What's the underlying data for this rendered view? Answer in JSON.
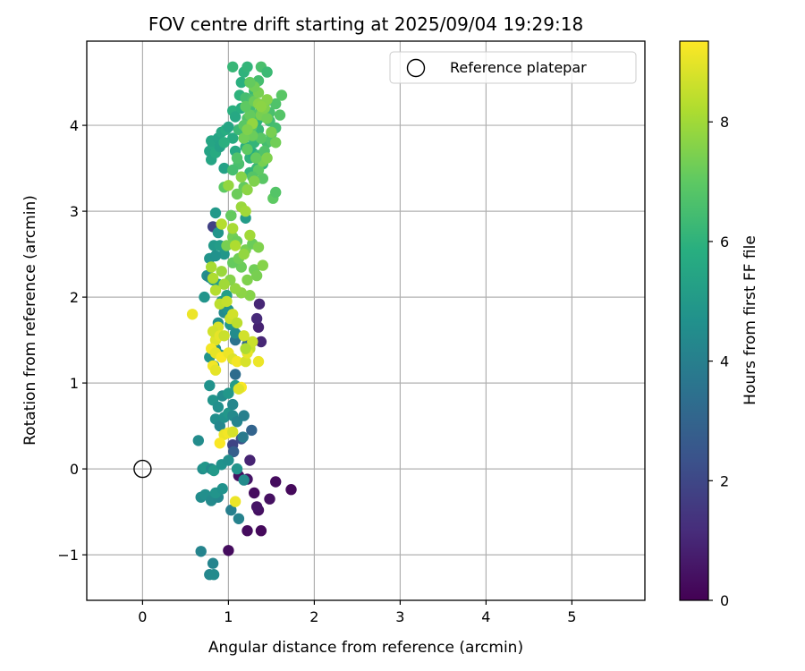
{
  "chart_data": {
    "type": "scatter",
    "title": "FOV centre drift starting at 2025/09/04 19:29:18",
    "xlabel": "Angular distance from reference (arcmin)",
    "ylabel": "Rotation from reference (arcmin)",
    "xlim": [
      -0.65,
      5.85
    ],
    "ylim": [
      -1.53,
      4.98
    ],
    "xticks": [
      0,
      1,
      2,
      3,
      4,
      5
    ],
    "yticks": [
      -1,
      0,
      1,
      2,
      3,
      4
    ],
    "grid": true,
    "colormap": "viridis",
    "colorbar": {
      "label": "Hours from first FF file",
      "range": [
        0,
        9.35
      ],
      "ticks": [
        0,
        2,
        4,
        6,
        8
      ]
    },
    "legend": {
      "position": "top-right",
      "entries": [
        {
          "label": "Reference platepar",
          "marker": "open-circle"
        }
      ]
    },
    "reference_point": {
      "x": 0,
      "y": 0
    },
    "points": [
      [
        1.38,
        -0.72,
        0.2
      ],
      [
        1.22,
        -0.72,
        0.3
      ],
      [
        1.0,
        -0.95,
        0.3
      ],
      [
        1.35,
        -0.48,
        0.4
      ],
      [
        1.33,
        -0.44,
        0.5
      ],
      [
        1.48,
        -0.35,
        0.4
      ],
      [
        1.55,
        -0.15,
        0.3
      ],
      [
        1.73,
        -0.24,
        0.2
      ],
      [
        1.3,
        -0.28,
        0.3
      ],
      [
        1.12,
        -0.08,
        0.4
      ],
      [
        1.22,
        -0.12,
        0.5
      ],
      [
        1.25,
        0.1,
        0.9
      ],
      [
        1.36,
        1.92,
        1.0
      ],
      [
        1.35,
        1.65,
        0.9
      ],
      [
        1.33,
        1.75,
        1.1
      ],
      [
        1.38,
        1.48,
        1.0
      ],
      [
        0.82,
        2.82,
        1.8
      ],
      [
        1.05,
        0.28,
        1.9
      ],
      [
        1.15,
        0.35,
        2.2
      ],
      [
        1.06,
        0.2,
        2.8
      ],
      [
        1.27,
        0.45,
        3.0
      ],
      [
        1.22,
        1.45,
        3.2
      ],
      [
        1.08,
        1.1,
        3.3
      ],
      [
        1.08,
        1.5,
        3.6
      ],
      [
        1.17,
        0.37,
        3.8
      ],
      [
        0.68,
        -0.96,
        4.2
      ],
      [
        0.78,
        -1.23,
        4.3
      ],
      [
        0.83,
        -1.23,
        4.4
      ],
      [
        0.82,
        -1.1,
        4.2
      ],
      [
        0.68,
        -0.33,
        4.5
      ],
      [
        0.73,
        -0.3,
        4.6
      ],
      [
        0.8,
        -0.37,
        4.4
      ],
      [
        0.88,
        -0.33,
        4.3
      ],
      [
        0.85,
        -0.28,
        4.8
      ],
      [
        0.93,
        -0.23,
        4.7
      ],
      [
        1.12,
        -0.58,
        4.1
      ],
      [
        1.03,
        -0.48,
        4.0
      ],
      [
        1.18,
        -0.13,
        4.5
      ],
      [
        0.7,
        0.0,
        4.6
      ],
      [
        0.73,
        0.02,
        4.9
      ],
      [
        0.8,
        0.0,
        4.4
      ],
      [
        0.83,
        -0.02,
        5.0
      ],
      [
        0.92,
        0.05,
        4.7
      ],
      [
        1.0,
        0.1,
        4.6
      ],
      [
        1.1,
        0.0,
        4.8
      ],
      [
        0.65,
        0.33,
        4.5
      ],
      [
        0.85,
        0.58,
        4.6
      ],
      [
        0.9,
        0.5,
        4.3
      ],
      [
        0.95,
        0.6,
        4.7
      ],
      [
        1.0,
        0.65,
        4.9
      ],
      [
        1.05,
        0.62,
        4.4
      ],
      [
        1.1,
        0.55,
        4.2
      ],
      [
        1.18,
        0.62,
        4.0
      ],
      [
        0.82,
        0.8,
        4.8
      ],
      [
        0.88,
        0.72,
        4.6
      ],
      [
        0.93,
        0.85,
        4.5
      ],
      [
        1.0,
        0.88,
        4.9
      ],
      [
        1.05,
        0.75,
        4.3
      ],
      [
        0.78,
        0.97,
        4.7
      ],
      [
        1.08,
        0.97,
        5.1
      ],
      [
        0.85,
        1.4,
        4.6
      ],
      [
        0.78,
        1.3,
        4.8
      ],
      [
        0.83,
        1.2,
        5.0
      ],
      [
        0.9,
        1.33,
        4.9
      ],
      [
        1.05,
        1.28,
        4.7
      ],
      [
        0.88,
        1.7,
        4.6
      ],
      [
        0.95,
        1.82,
        4.4
      ],
      [
        1.0,
        1.85,
        4.7
      ],
      [
        1.02,
        1.68,
        4.9
      ],
      [
        1.08,
        1.58,
        4.5
      ],
      [
        0.72,
        2.0,
        4.8
      ],
      [
        0.75,
        2.25,
        4.6
      ],
      [
        0.78,
        2.23,
        4.3
      ],
      [
        0.82,
        2.2,
        4.9
      ],
      [
        0.88,
        2.15,
        5.1
      ],
      [
        0.92,
        1.95,
        5.0
      ],
      [
        0.98,
        2.02,
        5.2
      ],
      [
        0.78,
        2.45,
        4.8
      ],
      [
        0.83,
        2.6,
        5.0
      ],
      [
        0.88,
        2.75,
        4.8
      ],
      [
        0.9,
        2.6,
        5.1
      ],
      [
        0.95,
        2.5,
        4.9
      ],
      [
        0.85,
        2.98,
        5.0
      ],
      [
        1.03,
        2.95,
        5.2
      ],
      [
        1.2,
        2.92,
        5.1
      ],
      [
        0.85,
        2.48,
        4.7
      ],
      [
        0.95,
        3.5,
        5.3
      ],
      [
        0.8,
        3.6,
        5.5
      ],
      [
        0.78,
        3.7,
        5.4
      ],
      [
        0.82,
        3.78,
        5.6
      ],
      [
        0.85,
        3.68,
        5.7
      ],
      [
        0.8,
        3.82,
        5.5
      ],
      [
        0.88,
        3.85,
        5.4
      ],
      [
        0.92,
        3.92,
        5.6
      ],
      [
        0.97,
        3.95,
        5.8
      ],
      [
        1.0,
        3.98,
        5.5
      ],
      [
        1.05,
        3.85,
        5.7
      ],
      [
        0.9,
        3.75,
        5.3
      ],
      [
        0.95,
        3.8,
        5.9
      ],
      [
        1.08,
        3.7,
        5.6
      ],
      [
        1.12,
        3.55,
        5.8
      ],
      [
        1.05,
        4.17,
        5.9
      ],
      [
        1.08,
        4.1,
        5.6
      ],
      [
        1.15,
        4.2,
        5.8
      ],
      [
        1.13,
        4.35,
        6.0
      ],
      [
        1.15,
        4.5,
        5.9
      ],
      [
        1.18,
        4.62,
        6.0
      ],
      [
        1.22,
        4.68,
        6.1
      ],
      [
        1.05,
        4.68,
        6.2
      ],
      [
        1.25,
        3.62,
        6.0
      ],
      [
        1.2,
        3.75,
        5.9
      ],
      [
        1.3,
        3.8,
        6.1
      ],
      [
        1.28,
        3.68,
        5.8
      ],
      [
        1.18,
        3.85,
        6.0
      ],
      [
        1.12,
        3.95,
        6.3
      ],
      [
        1.22,
        3.9,
        5.7
      ],
      [
        1.35,
        3.95,
        6.2
      ],
      [
        1.33,
        4.05,
        6.0
      ],
      [
        1.4,
        4.1,
        6.1
      ],
      [
        1.38,
        4.18,
        6.2
      ],
      [
        1.42,
        4.25,
        5.9
      ],
      [
        1.35,
        3.65,
        6.3
      ],
      [
        1.4,
        3.55,
        6.0
      ],
      [
        1.33,
        3.5,
        6.2
      ],
      [
        1.25,
        3.45,
        6.1
      ],
      [
        1.3,
        4.4,
        6.3
      ],
      [
        1.28,
        4.48,
        6.4
      ],
      [
        1.35,
        4.52,
        6.5
      ],
      [
        1.38,
        4.68,
        6.6
      ],
      [
        1.45,
        4.62,
        6.3
      ],
      [
        1.48,
        4.05,
        6.4
      ],
      [
        1.5,
        3.9,
        6.6
      ],
      [
        1.45,
        3.8,
        6.5
      ],
      [
        1.42,
        3.7,
        6.7
      ],
      [
        1.25,
        4.2,
        6.4
      ],
      [
        1.2,
        4.32,
        6.5
      ],
      [
        1.28,
        4.3,
        6.6
      ],
      [
        1.32,
        4.12,
        6.8
      ],
      [
        1.22,
        4.08,
        6.7
      ],
      [
        1.18,
        4.0,
        6.9
      ],
      [
        1.27,
        3.98,
        6.8
      ],
      [
        1.38,
        3.85,
        6.9
      ],
      [
        1.5,
        3.82,
        6.7
      ],
      [
        1.55,
        3.97,
        6.5
      ],
      [
        1.48,
        4.15,
        6.6
      ],
      [
        1.6,
        4.12,
        6.8
      ],
      [
        1.55,
        4.25,
        6.7
      ],
      [
        1.62,
        4.35,
        6.9
      ],
      [
        1.52,
        3.15,
        7.0
      ],
      [
        1.55,
        3.22,
        6.8
      ],
      [
        1.4,
        3.38,
        6.9
      ],
      [
        1.35,
        3.48,
        7.0
      ],
      [
        1.28,
        3.4,
        6.8
      ],
      [
        1.12,
        3.55,
        6.6
      ],
      [
        1.1,
        3.62,
        6.7
      ],
      [
        1.05,
        3.48,
        6.5
      ],
      [
        1.18,
        3.28,
        7.1
      ],
      [
        1.1,
        3.2,
        7.2
      ],
      [
        0.95,
        3.28,
        7.0
      ],
      [
        1.03,
        2.95,
        7.1
      ],
      [
        1.05,
        2.7,
        7.3
      ],
      [
        1.1,
        2.65,
        7.2
      ],
      [
        0.98,
        2.6,
        7.4
      ],
      [
        1.15,
        2.35,
        7.2
      ],
      [
        1.05,
        2.4,
        7.1
      ],
      [
        1.12,
        2.45,
        7.3
      ],
      [
        1.2,
        2.55,
        7.4
      ],
      [
        1.28,
        2.62,
        7.2
      ],
      [
        1.35,
        2.58,
        7.5
      ],
      [
        1.3,
        2.32,
        7.3
      ],
      [
        1.4,
        2.37,
        7.6
      ],
      [
        1.33,
        2.25,
        7.4
      ],
      [
        1.22,
        2.2,
        7.5
      ],
      [
        1.25,
        2.02,
        7.6
      ],
      [
        1.15,
        2.05,
        7.7
      ],
      [
        1.08,
        2.1,
        7.8
      ],
      [
        1.02,
        2.2,
        7.6
      ],
      [
        0.92,
        2.3,
        7.9
      ],
      [
        0.95,
        2.15,
        8.0
      ],
      [
        0.8,
        2.35,
        8.1
      ],
      [
        0.82,
        2.22,
        8.2
      ],
      [
        0.85,
        2.08,
        8.3
      ],
      [
        0.9,
        1.92,
        8.4
      ],
      [
        0.98,
        1.95,
        8.5
      ],
      [
        1.02,
        1.75,
        8.6
      ],
      [
        1.05,
        1.8,
        8.7
      ],
      [
        1.1,
        1.7,
        8.4
      ],
      [
        0.88,
        1.65,
        8.8
      ],
      [
        0.85,
        1.5,
        8.9
      ],
      [
        0.82,
        1.6,
        8.7
      ],
      [
        0.9,
        1.55,
        9.0
      ],
      [
        0.95,
        1.55,
        8.6
      ],
      [
        0.58,
        1.8,
        9.1
      ],
      [
        0.8,
        1.4,
        9.2
      ],
      [
        0.85,
        1.35,
        9.0
      ],
      [
        0.92,
        1.3,
        9.3
      ],
      [
        1.0,
        1.35,
        9.1
      ],
      [
        1.05,
        1.28,
        8.9
      ],
      [
        1.1,
        1.25,
        9.2
      ],
      [
        1.2,
        1.25,
        8.8
      ],
      [
        1.25,
        1.4,
        8.5
      ],
      [
        1.28,
        1.48,
        8.6
      ],
      [
        1.18,
        1.55,
        8.7
      ],
      [
        1.22,
        1.35,
        9.0
      ],
      [
        1.35,
        1.25,
        9.1
      ],
      [
        0.82,
        1.2,
        9.2
      ],
      [
        0.85,
        1.15,
        9.0
      ],
      [
        1.15,
        0.95,
        9.3
      ],
      [
        1.12,
        0.93,
        8.9
      ],
      [
        0.95,
        0.4,
        9.1
      ],
      [
        1.0,
        0.42,
        9.2
      ],
      [
        1.05,
        0.43,
        8.8
      ],
      [
        0.9,
        0.3,
        9.3
      ],
      [
        1.08,
        -0.38,
        9.1
      ],
      [
        1.2,
        1.4,
        8.2
      ],
      [
        1.18,
        2.5,
        7.8
      ],
      [
        1.25,
        2.72,
        8.0
      ],
      [
        1.05,
        2.8,
        8.1
      ],
      [
        0.92,
        2.85,
        8.3
      ],
      [
        1.08,
        2.6,
        8.2
      ],
      [
        1.15,
        3.05,
        7.9
      ],
      [
        1.2,
        3.0,
        8.0
      ],
      [
        1.22,
        3.25,
        7.7
      ],
      [
        1.0,
        3.3,
        7.8
      ],
      [
        1.3,
        3.35,
        7.5
      ],
      [
        1.15,
        3.4,
        7.6
      ],
      [
        1.4,
        3.58,
        7.4
      ],
      [
        1.45,
        3.62,
        7.5
      ],
      [
        1.55,
        3.8,
        7.3
      ],
      [
        1.5,
        3.92,
        7.4
      ],
      [
        1.28,
        3.88,
        7.2
      ],
      [
        1.32,
        3.62,
        7.1
      ],
      [
        1.22,
        3.72,
        7.0
      ],
      [
        1.18,
        3.85,
        7.3
      ],
      [
        1.27,
        4.02,
        7.2
      ],
      [
        1.38,
        4.12,
        7.4
      ],
      [
        1.45,
        4.08,
        7.3
      ],
      [
        1.25,
        4.12,
        7.1
      ],
      [
        1.2,
        4.22,
        7.0
      ],
      [
        1.3,
        4.28,
        7.2
      ],
      [
        1.35,
        4.38,
        7.4
      ],
      [
        1.3,
        4.45,
        7.3
      ],
      [
        1.25,
        4.5,
        7.1
      ],
      [
        1.35,
        4.25,
        7.6
      ],
      [
        1.42,
        4.2,
        7.5
      ],
      [
        1.45,
        4.3,
        7.6
      ],
      [
        1.38,
        4.22,
        7.7
      ],
      [
        1.28,
        4.02,
        7.8
      ],
      [
        1.22,
        3.95,
        7.5
      ]
    ]
  }
}
